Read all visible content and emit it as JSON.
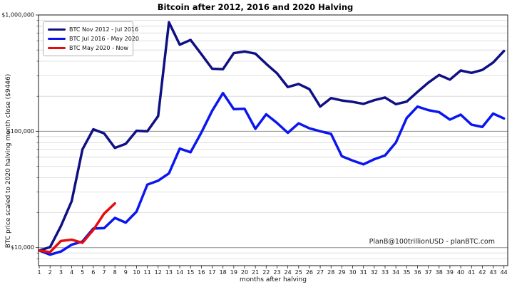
{
  "figure": {
    "title": "Bitcoin after 2012, 2016 and 2020 Halving",
    "x_axis_label": "months after halving",
    "y_axis_label": "BTC price scaled to 2020 halving month close ($9446)",
    "watermark": "PlanB@100trillionUSD  -  planBTC.com"
  },
  "chart_data": {
    "type": "line",
    "title": "Bitcoin after 2012, 2016 and 2020 Halving",
    "xlabel": "months after halving",
    "ylabel": "BTC price scaled to 2020 halving month close ($9446)",
    "y_scale": "log",
    "ylim": [
      7000,
      1000000
    ],
    "xlim": [
      0.93,
      44.35
    ],
    "grid": true,
    "legend_position": "upper-left",
    "x": [
      1,
      2,
      3,
      4,
      5,
      6,
      7,
      8,
      9,
      10,
      11,
      12,
      13,
      14,
      15,
      16,
      17,
      18,
      19,
      20,
      21,
      22,
      23,
      24,
      25,
      26,
      27,
      28,
      29,
      30,
      31,
      32,
      33,
      34,
      35,
      36,
      37,
      38,
      39,
      40,
      41,
      42,
      43,
      44
    ],
    "y_major_ticks": [
      {
        "value": 10000,
        "label": "$10,000"
      },
      {
        "value": 100000,
        "label": "$100,000"
      },
      {
        "value": 1000000,
        "label": "$1,000,000"
      }
    ],
    "y_minor_gridlines": [
      8000,
      9000,
      20000,
      30000,
      40000,
      50000,
      60000,
      70000,
      80000,
      90000,
      200000,
      300000,
      400000,
      500000,
      600000,
      700000,
      800000,
      900000
    ],
    "series": [
      {
        "name": "BTC Nov 2012 - Jul 2016",
        "color": "#101085",
        "values": [
          9446,
          10100,
          15300,
          25100,
          70000,
          104000,
          96000,
          72000,
          78000,
          101000,
          100000,
          135000,
          865000,
          555000,
          610000,
          460000,
          345000,
          342000,
          470000,
          485000,
          465000,
          380000,
          315000,
          240000,
          255000,
          230000,
          163000,
          193000,
          184000,
          179000,
          172000,
          185000,
          195000,
          171000,
          180000,
          218000,
          262000,
          305000,
          278000,
          333000,
          318000,
          337000,
          390000,
          490000
        ]
      },
      {
        "name": "BTC Jul 2016 - May 2020",
        "color": "#0a16f0",
        "values": [
          9446,
          8700,
          9250,
          10600,
          11300,
          14600,
          14700,
          18000,
          16400,
          20400,
          34800,
          37600,
          43500,
          71000,
          66000,
          97500,
          150000,
          213000,
          155000,
          156000,
          105000,
          140000,
          118000,
          97000,
          117000,
          106000,
          100000,
          95000,
          61000,
          56000,
          52000,
          57500,
          62000,
          80000,
          130000,
          163000,
          152000,
          146000,
          126000,
          139000,
          114000,
          109000,
          142000,
          129000
        ]
      },
      {
        "name": "BTC May 2020 - Now",
        "color": "#e60c0c",
        "values": [
          9446,
          9150,
          11400,
          11700,
          11000,
          14200,
          19600,
          24000
        ]
      }
    ],
    "watermark": "PlanB@100trillionUSD  -  planBTC.com",
    "grid_colors": {
      "major": "#909090",
      "minor": "#d8d8d8",
      "spine": "#1a1a1a"
    }
  }
}
